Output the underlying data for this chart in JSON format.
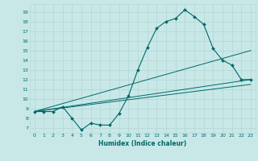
{
  "title": "",
  "xlabel": "Humidex (Indice chaleur)",
  "bg_color": "#c8e8e8",
  "grid_color": "#b8d8d8",
  "line_color": "#006868",
  "xlim": [
    -0.5,
    23.5
  ],
  "ylim": [
    6.5,
    19.8
  ],
  "yticks": [
    7,
    8,
    9,
    10,
    11,
    12,
    13,
    14,
    15,
    16,
    17,
    18,
    19
  ],
  "xticks": [
    0,
    1,
    2,
    3,
    4,
    5,
    6,
    7,
    8,
    9,
    10,
    11,
    12,
    13,
    14,
    15,
    16,
    17,
    18,
    19,
    20,
    21,
    22,
    23
  ],
  "line1_x": [
    0,
    1,
    2,
    3,
    4,
    5,
    6,
    7,
    8,
    9,
    10,
    11,
    12,
    13,
    14,
    15,
    16,
    17,
    18,
    19,
    20,
    21,
    22,
    23
  ],
  "line1_y": [
    8.7,
    8.7,
    8.7,
    9.2,
    8.0,
    6.8,
    7.5,
    7.3,
    7.3,
    8.5,
    10.3,
    13.0,
    15.3,
    17.3,
    18.0,
    18.3,
    19.2,
    18.5,
    17.7,
    15.2,
    14.0,
    13.5,
    12.0,
    12.0
  ],
  "line2_x": [
    0,
    23
  ],
  "line2_y": [
    8.7,
    12.0
  ],
  "line3_x": [
    0,
    23
  ],
  "line3_y": [
    8.7,
    15.0
  ],
  "line4_x": [
    0,
    23
  ],
  "line4_y": [
    8.7,
    11.5
  ]
}
